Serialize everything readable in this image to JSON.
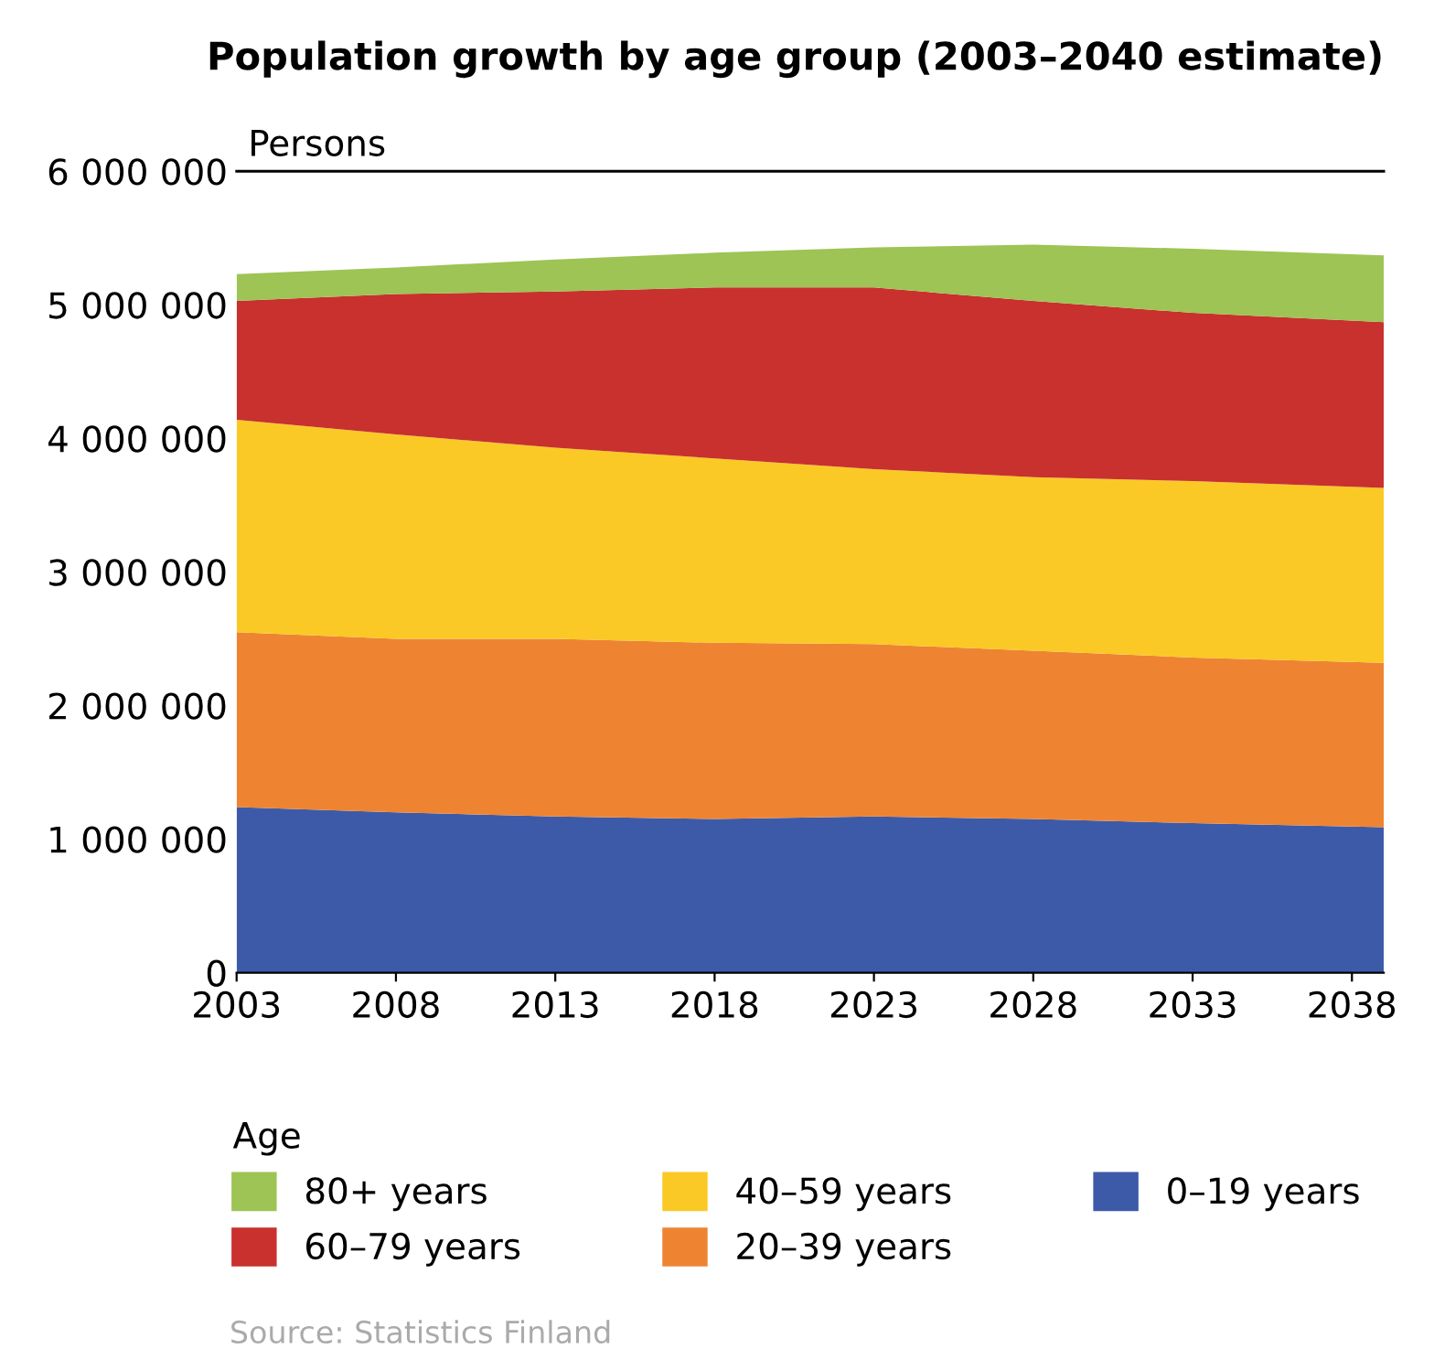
{
  "chart_data": {
    "type": "area",
    "stacked": true,
    "title": "Population growth by age group (2003–2040 estimate)",
    "ylabel": "Persons",
    "legend_title": "Age",
    "legend": "bottom",
    "x": [
      2003,
      2008,
      2013,
      2018,
      2023,
      2028,
      2033,
      2039
    ],
    "xlim": [
      2003,
      2039
    ],
    "xticks": [
      2003,
      2008,
      2013,
      2018,
      2023,
      2028,
      2033,
      2038
    ],
    "ylim": [
      0,
      6000000
    ],
    "yticks": [
      {
        "value": 0,
        "label": "0"
      },
      {
        "value": 1000000,
        "label": "1 000 000"
      },
      {
        "value": 2000000,
        "label": "2 000 000"
      },
      {
        "value": 3000000,
        "label": "3 000 000"
      },
      {
        "value": 4000000,
        "label": "4 000 000"
      },
      {
        "value": 5000000,
        "label": "5 000 000"
      },
      {
        "value": 6000000,
        "label": "6 000 000"
      }
    ],
    "grid": false,
    "series": [
      {
        "name": "0–19 years",
        "color": "#3d5aa8",
        "values": [
          1240000,
          1200000,
          1170000,
          1150000,
          1170000,
          1150000,
          1120000,
          1090000
        ]
      },
      {
        "name": "20–39 years",
        "color": "#ee8432",
        "values": [
          1310000,
          1300000,
          1330000,
          1320000,
          1290000,
          1260000,
          1240000,
          1230000
        ]
      },
      {
        "name": "40–59 years",
        "color": "#fbc925",
        "values": [
          1590000,
          1530000,
          1430000,
          1380000,
          1310000,
          1300000,
          1320000,
          1310000
        ]
      },
      {
        "name": "60–79 years",
        "color": "#c8312e",
        "values": [
          890000,
          1050000,
          1170000,
          1280000,
          1360000,
          1320000,
          1260000,
          1240000
        ]
      },
      {
        "name": "80+ years",
        "color": "#9dc454",
        "values": [
          200000,
          200000,
          240000,
          260000,
          300000,
          420000,
          480000,
          500000
        ]
      }
    ],
    "annotations": [
      "Source: Statistics Finland"
    ]
  }
}
